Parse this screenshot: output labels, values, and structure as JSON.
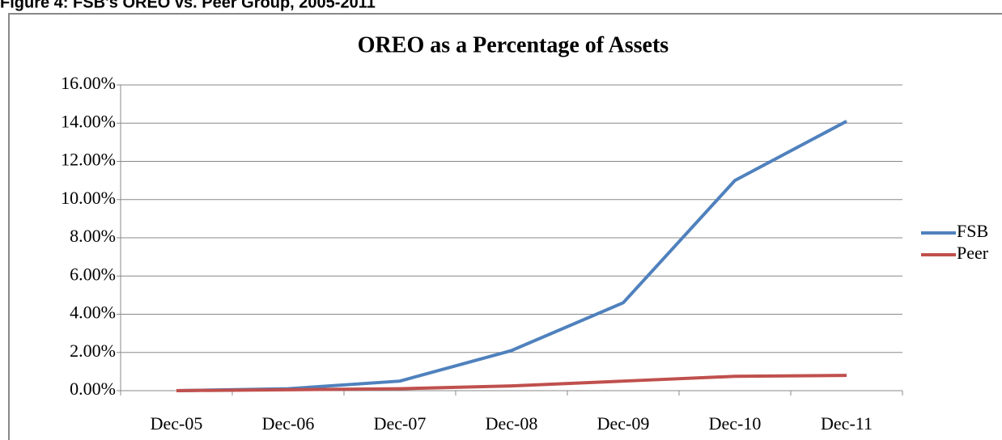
{
  "header": {
    "title": "Figure 4: FSB's OREO vs. Peer Group, 2005-2011"
  },
  "chart_data": {
    "type": "line",
    "title": "OREO as a Percentage of Assets",
    "categories": [
      "Dec-05",
      "Dec-06",
      "Dec-07",
      "Dec-08",
      "Dec-09",
      "Dec-10",
      "Dec-11"
    ],
    "series": [
      {
        "name": "FSB",
        "color": "#4f81bd",
        "values": [
          0.0,
          0.1,
          0.5,
          2.1,
          4.6,
          11.0,
          14.1
        ]
      },
      {
        "name": "Peer",
        "color": "#c0504d",
        "values": [
          0.0,
          0.05,
          0.1,
          0.25,
          0.5,
          0.75,
          0.8
        ]
      }
    ],
    "ylim": [
      0,
      16
    ],
    "yticks": [
      {
        "value": 0,
        "label": "0.00%"
      },
      {
        "value": 2,
        "label": "2.00%"
      },
      {
        "value": 4,
        "label": "4.00%"
      },
      {
        "value": 6,
        "label": "6.00%"
      },
      {
        "value": 8,
        "label": "8.00%"
      },
      {
        "value": 10,
        "label": "10.00%"
      },
      {
        "value": 12,
        "label": "12.00%"
      },
      {
        "value": 14,
        "label": "14.00%"
      },
      {
        "value": 16,
        "label": "16.00%"
      }
    ],
    "grid": true,
    "legend": "right"
  }
}
